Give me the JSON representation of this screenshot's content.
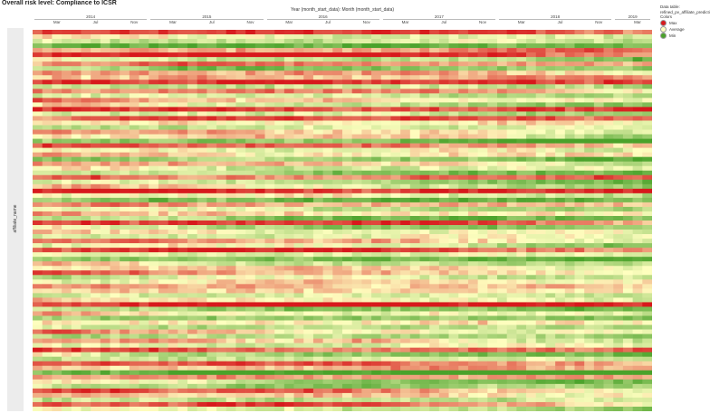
{
  "title": "Overall risk level: Compliance to ICSR",
  "legend": {
    "data_table_label": "Data table:",
    "data_table_name": "refined_pv_affiliate_predictio",
    "colors_label": "Colors",
    "items": [
      {
        "label": "Max",
        "color": "#d7191c"
      },
      {
        "label": "Average",
        "color": "#ffffbf"
      },
      {
        "label": "Min",
        "color": "#4aa22a"
      }
    ]
  },
  "chart_data": {
    "type": "heatmap",
    "title": "Overall risk level: Compliance to ICSR",
    "xlabel": "Year (month_start_data): Month (month_start_data)",
    "ylabel": "affiliate_name",
    "x_years": [
      "2014",
      "2015",
      "2016",
      "2017",
      "2018",
      "2019"
    ],
    "x_month_ticks": [
      {
        "year": "2014",
        "labels": [
          "Mar",
          "Jul",
          "Nov"
        ]
      },
      {
        "year": "2015",
        "labels": [
          "Mar",
          "Jul",
          "Nov"
        ]
      },
      {
        "year": "2016",
        "labels": [
          "Mar",
          "Jul",
          "Nov"
        ]
      },
      {
        "year": "2017",
        "labels": [
          "Mar",
          "Jul",
          "Nov"
        ]
      },
      {
        "year": "2018",
        "labels": [
          "Mar",
          "Jul",
          "Nov"
        ]
      },
      {
        "year": "2019",
        "labels": [
          "Mar"
        ]
      }
    ],
    "n_months": 64,
    "n_rows": 84,
    "color_scale": {
      "max": "#d7191c",
      "average": "#ffffbf",
      "min": "#4aa22a"
    },
    "grid": false,
    "legend_position": "right",
    "row_profiles": [
      0.85,
      0.55,
      0.4,
      0.2,
      0.7,
      0.95,
      0.5,
      0.65,
      0.3,
      0.8,
      0.6,
      0.9,
      0.45,
      0.75,
      0.35,
      0.85,
      0.55,
      0.95,
      0.4,
      0.7,
      0.5,
      0.3,
      0.8,
      0.6,
      0.25,
      0.9,
      0.45,
      0.65,
      0.2,
      0.75,
      0.55,
      0.35,
      0.85,
      0.4,
      0.6,
      0.95,
      0.5,
      0.3,
      0.7,
      0.45,
      0.8,
      0.25,
      0.9,
      0.55,
      0.65,
      0.35,
      0.75,
      0.4,
      0.85,
      0.5,
      0.2,
      0.7,
      0.6,
      0.95,
      0.3,
      0.45,
      0.8,
      0.55,
      0.35,
      0.65,
      0.9,
      0.4,
      0.75,
      0.25,
      0.6,
      0.5,
      0.85,
      0.3,
      0.7,
      0.45,
      0.95,
      0.55,
      0.35,
      0.8,
      0.6,
      0.2,
      0.75,
      0.5,
      0.4,
      0.9,
      0.65,
      0.3,
      0.85,
      0.55
    ]
  }
}
